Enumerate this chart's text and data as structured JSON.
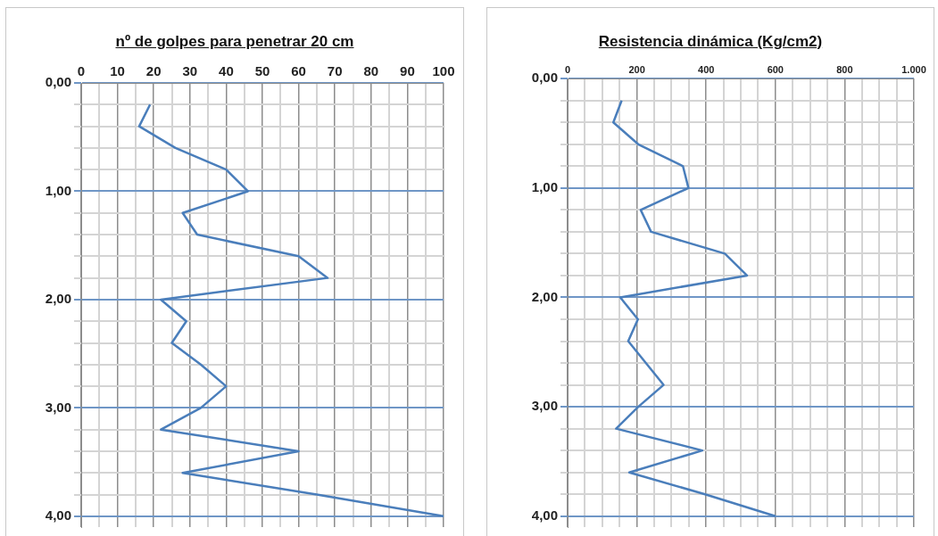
{
  "chart_data": [
    {
      "type": "line",
      "title": "nº de golpes para penetrar 20 cm",
      "xlim": [
        0,
        100
      ],
      "ylim": [
        4.1,
        0
      ],
      "xticks": [
        0,
        {
          "value": 5,
          "label": null
        },
        10,
        {
          "value": 15,
          "label": null
        },
        20,
        {
          "value": 25,
          "label": null
        },
        30,
        {
          "value": 35,
          "label": null
        },
        40,
        {
          "value": 45,
          "label": null
        },
        50,
        {
          "value": 55,
          "label": null
        },
        60,
        {
          "value": 65,
          "label": null
        },
        70,
        {
          "value": 75,
          "label": null
        },
        80,
        {
          "value": 85,
          "label": null
        },
        90,
        {
          "value": 95,
          "label": null
        },
        100
      ],
      "yticks": [
        {
          "value": 0,
          "label": "0,00"
        },
        {
          "value": 0.2,
          "label": null
        },
        {
          "value": 0.4,
          "label": null
        },
        {
          "value": 0.6,
          "label": null
        },
        {
          "value": 0.8,
          "label": null
        },
        {
          "value": 1,
          "label": "1,00"
        },
        {
          "value": 1.2,
          "label": null
        },
        {
          "value": 1.4,
          "label": null
        },
        {
          "value": 1.6,
          "label": null
        },
        {
          "value": 1.8,
          "label": null
        },
        {
          "value": 2,
          "label": "2,00"
        },
        {
          "value": 2.2,
          "label": null
        },
        {
          "value": 2.4,
          "label": null
        },
        {
          "value": 2.6,
          "label": null
        },
        {
          "value": 2.8,
          "label": null
        },
        {
          "value": 3,
          "label": "3,00"
        },
        {
          "value": 3.2,
          "label": null
        },
        {
          "value": 3.4,
          "label": null
        },
        {
          "value": 3.6,
          "label": null
        },
        {
          "value": 3.8,
          "label": null
        },
        {
          "value": 4,
          "label": "4,00"
        }
      ],
      "grid": true,
      "legend": false,
      "marker": "none",
      "series": [
        {
          "color": "#4a7ebb",
          "x": [
            19,
            16,
            26,
            40,
            46,
            28,
            32,
            60,
            68,
            22,
            29,
            25,
            33,
            40,
            33,
            22,
            60,
            28,
            65,
            100
          ],
          "values": [
            0.2,
            0.4,
            0.6,
            0.8,
            1.0,
            1.2,
            1.4,
            1.6,
            1.8,
            2.0,
            2.2,
            2.4,
            2.6,
            2.8,
            3.0,
            3.2,
            3.4,
            3.6,
            3.8,
            4.0
          ]
        }
      ]
    },
    {
      "type": "line",
      "title": "Resistencia dinámica (Kg/cm2)",
      "xlim": [
        0,
        1000
      ],
      "ylim": [
        4.1,
        0
      ],
      "xticks": [
        0,
        {
          "value": 50,
          "label": null
        },
        {
          "value": 100,
          "label": null
        },
        {
          "value": 150,
          "label": null
        },
        200,
        {
          "value": 250,
          "label": null
        },
        {
          "value": 300,
          "label": null
        },
        {
          "value": 350,
          "label": null
        },
        400,
        {
          "value": 450,
          "label": null
        },
        {
          "value": 500,
          "label": null
        },
        {
          "value": 550,
          "label": null
        },
        600,
        {
          "value": 650,
          "label": null
        },
        {
          "value": 700,
          "label": null
        },
        {
          "value": 750,
          "label": null
        },
        800,
        {
          "value": 850,
          "label": null
        },
        {
          "value": 900,
          "label": null
        },
        {
          "value": 950,
          "label": null
        },
        {
          "value": 1000,
          "label": "1.000"
        }
      ],
      "yticks": [
        {
          "value": 0,
          "label": "0,00"
        },
        {
          "value": 0.2,
          "label": null
        },
        {
          "value": 0.4,
          "label": null
        },
        {
          "value": 0.6,
          "label": null
        },
        {
          "value": 0.8,
          "label": null
        },
        {
          "value": 1,
          "label": "1,00"
        },
        {
          "value": 1.2,
          "label": null
        },
        {
          "value": 1.4,
          "label": null
        },
        {
          "value": 1.6,
          "label": null
        },
        {
          "value": 1.8,
          "label": null
        },
        {
          "value": 2,
          "label": "2,00"
        },
        {
          "value": 2.2,
          "label": null
        },
        {
          "value": 2.4,
          "label": null
        },
        {
          "value": 2.6,
          "label": null
        },
        {
          "value": 2.8,
          "label": null
        },
        {
          "value": 3,
          "label": "3,00"
        },
        {
          "value": 3.2,
          "label": null
        },
        {
          "value": 3.4,
          "label": null
        },
        {
          "value": 3.6,
          "label": null
        },
        {
          "value": 3.8,
          "label": null
        },
        {
          "value": 4,
          "label": "4,00"
        }
      ],
      "grid": true,
      "legend": false,
      "marker": "none",
      "series": [
        {
          "color": "#4a7ebb",
          "x": [
            156,
            132,
            204,
            333,
            349,
            211,
            241,
            454,
            518,
            152,
            203,
            175,
            226,
            277,
            204,
            140,
            389,
            178,
            397,
            600
          ],
          "values": [
            0.2,
            0.4,
            0.6,
            0.8,
            1.0,
            1.2,
            1.4,
            1.6,
            1.8,
            2.0,
            2.2,
            2.4,
            2.6,
            2.8,
            3.0,
            3.2,
            3.4,
            3.6,
            3.8,
            4.0
          ]
        }
      ]
    }
  ]
}
